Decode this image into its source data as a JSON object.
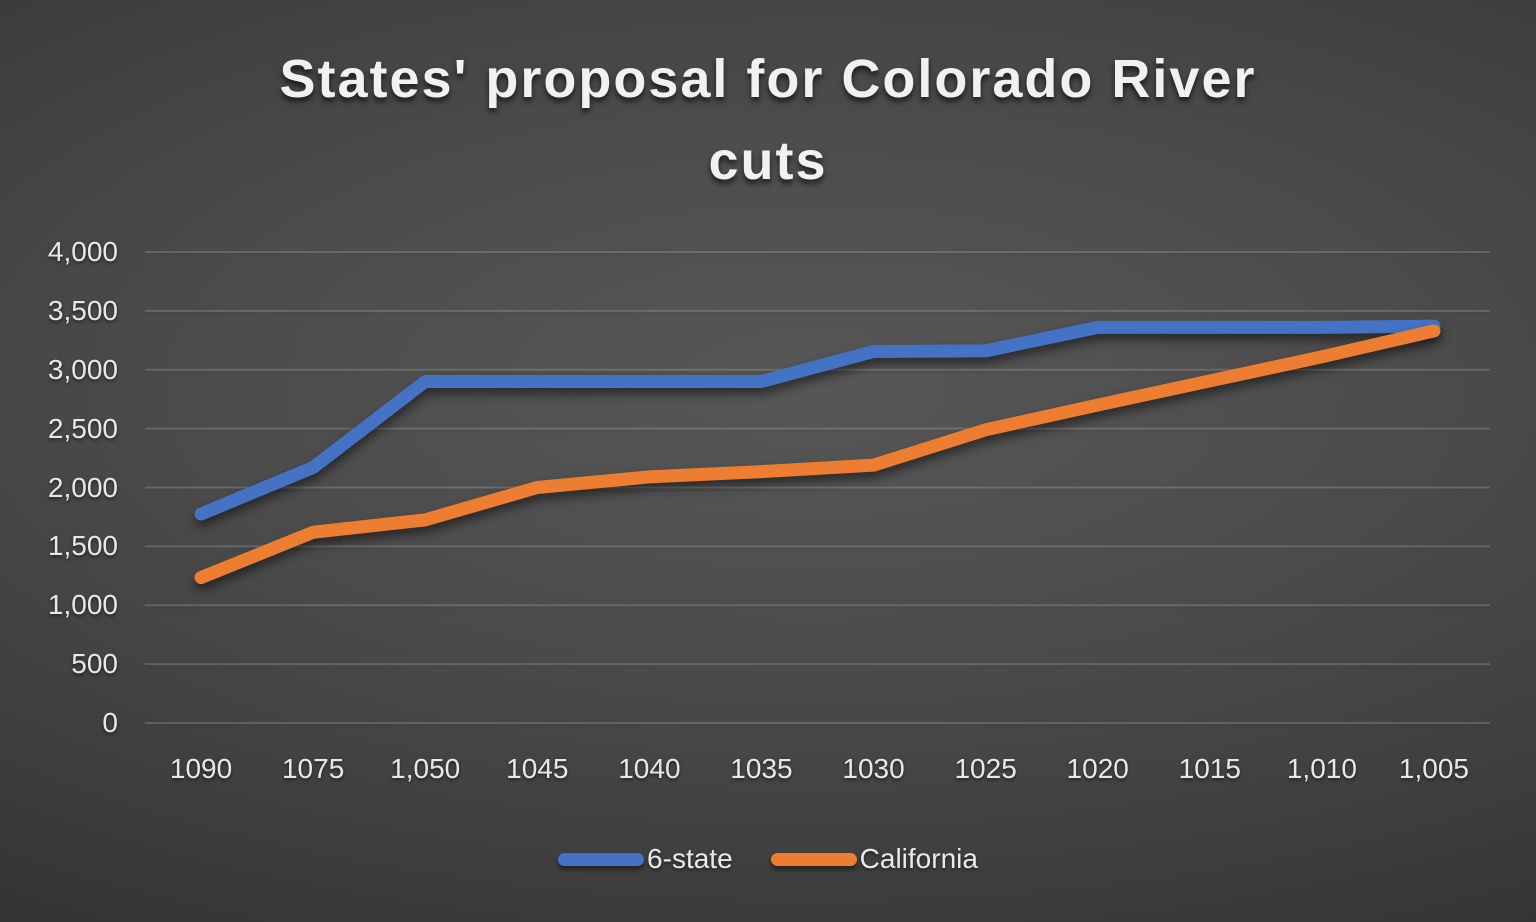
{
  "title": "States' proposal for Colorado River cuts",
  "title_lines": [
    "States' proposal for Colorado River",
    "cuts"
  ],
  "colors": {
    "six_state": "#4472C4",
    "california": "#ED7D31",
    "background_center": "#575757",
    "background_edge": "#242424",
    "gridline": "rgba(255,255,255,0.16)",
    "text": "#e8e8e8"
  },
  "legend": [
    {
      "label": "6-state",
      "color": "#4472C4"
    },
    {
      "label": "California",
      "color": "#ED7D31"
    }
  ],
  "chart_data": {
    "type": "line",
    "title": "States' proposal for Colorado River cuts",
    "xlabel": "",
    "ylabel": "",
    "categories": [
      "1090",
      "1075",
      "1,050",
      "1045",
      "1040",
      "1035",
      "1030",
      "1025",
      "1020",
      "1015",
      "1,010",
      "1,005"
    ],
    "series": [
      {
        "name": "6-state",
        "color": "#4472C4",
        "values": [
          1775,
          2170,
          2900,
          2900,
          2900,
          2900,
          3155,
          3160,
          3360,
          3360,
          3360,
          3370
        ]
      },
      {
        "name": "California",
        "color": "#ED7D31",
        "values": [
          1235,
          1620,
          1725,
          2000,
          2090,
          2135,
          2190,
          2490,
          2700,
          2905,
          3110,
          3330
        ]
      }
    ],
    "ylim": [
      0,
      4000
    ],
    "ytick_interval": 500,
    "yticks": [
      "4,000",
      "3,500",
      "3,000",
      "2,500",
      "2,000",
      "1,500",
      "1,000",
      "500",
      "0"
    ],
    "grid": "horizontal",
    "legend_position": "bottom"
  }
}
